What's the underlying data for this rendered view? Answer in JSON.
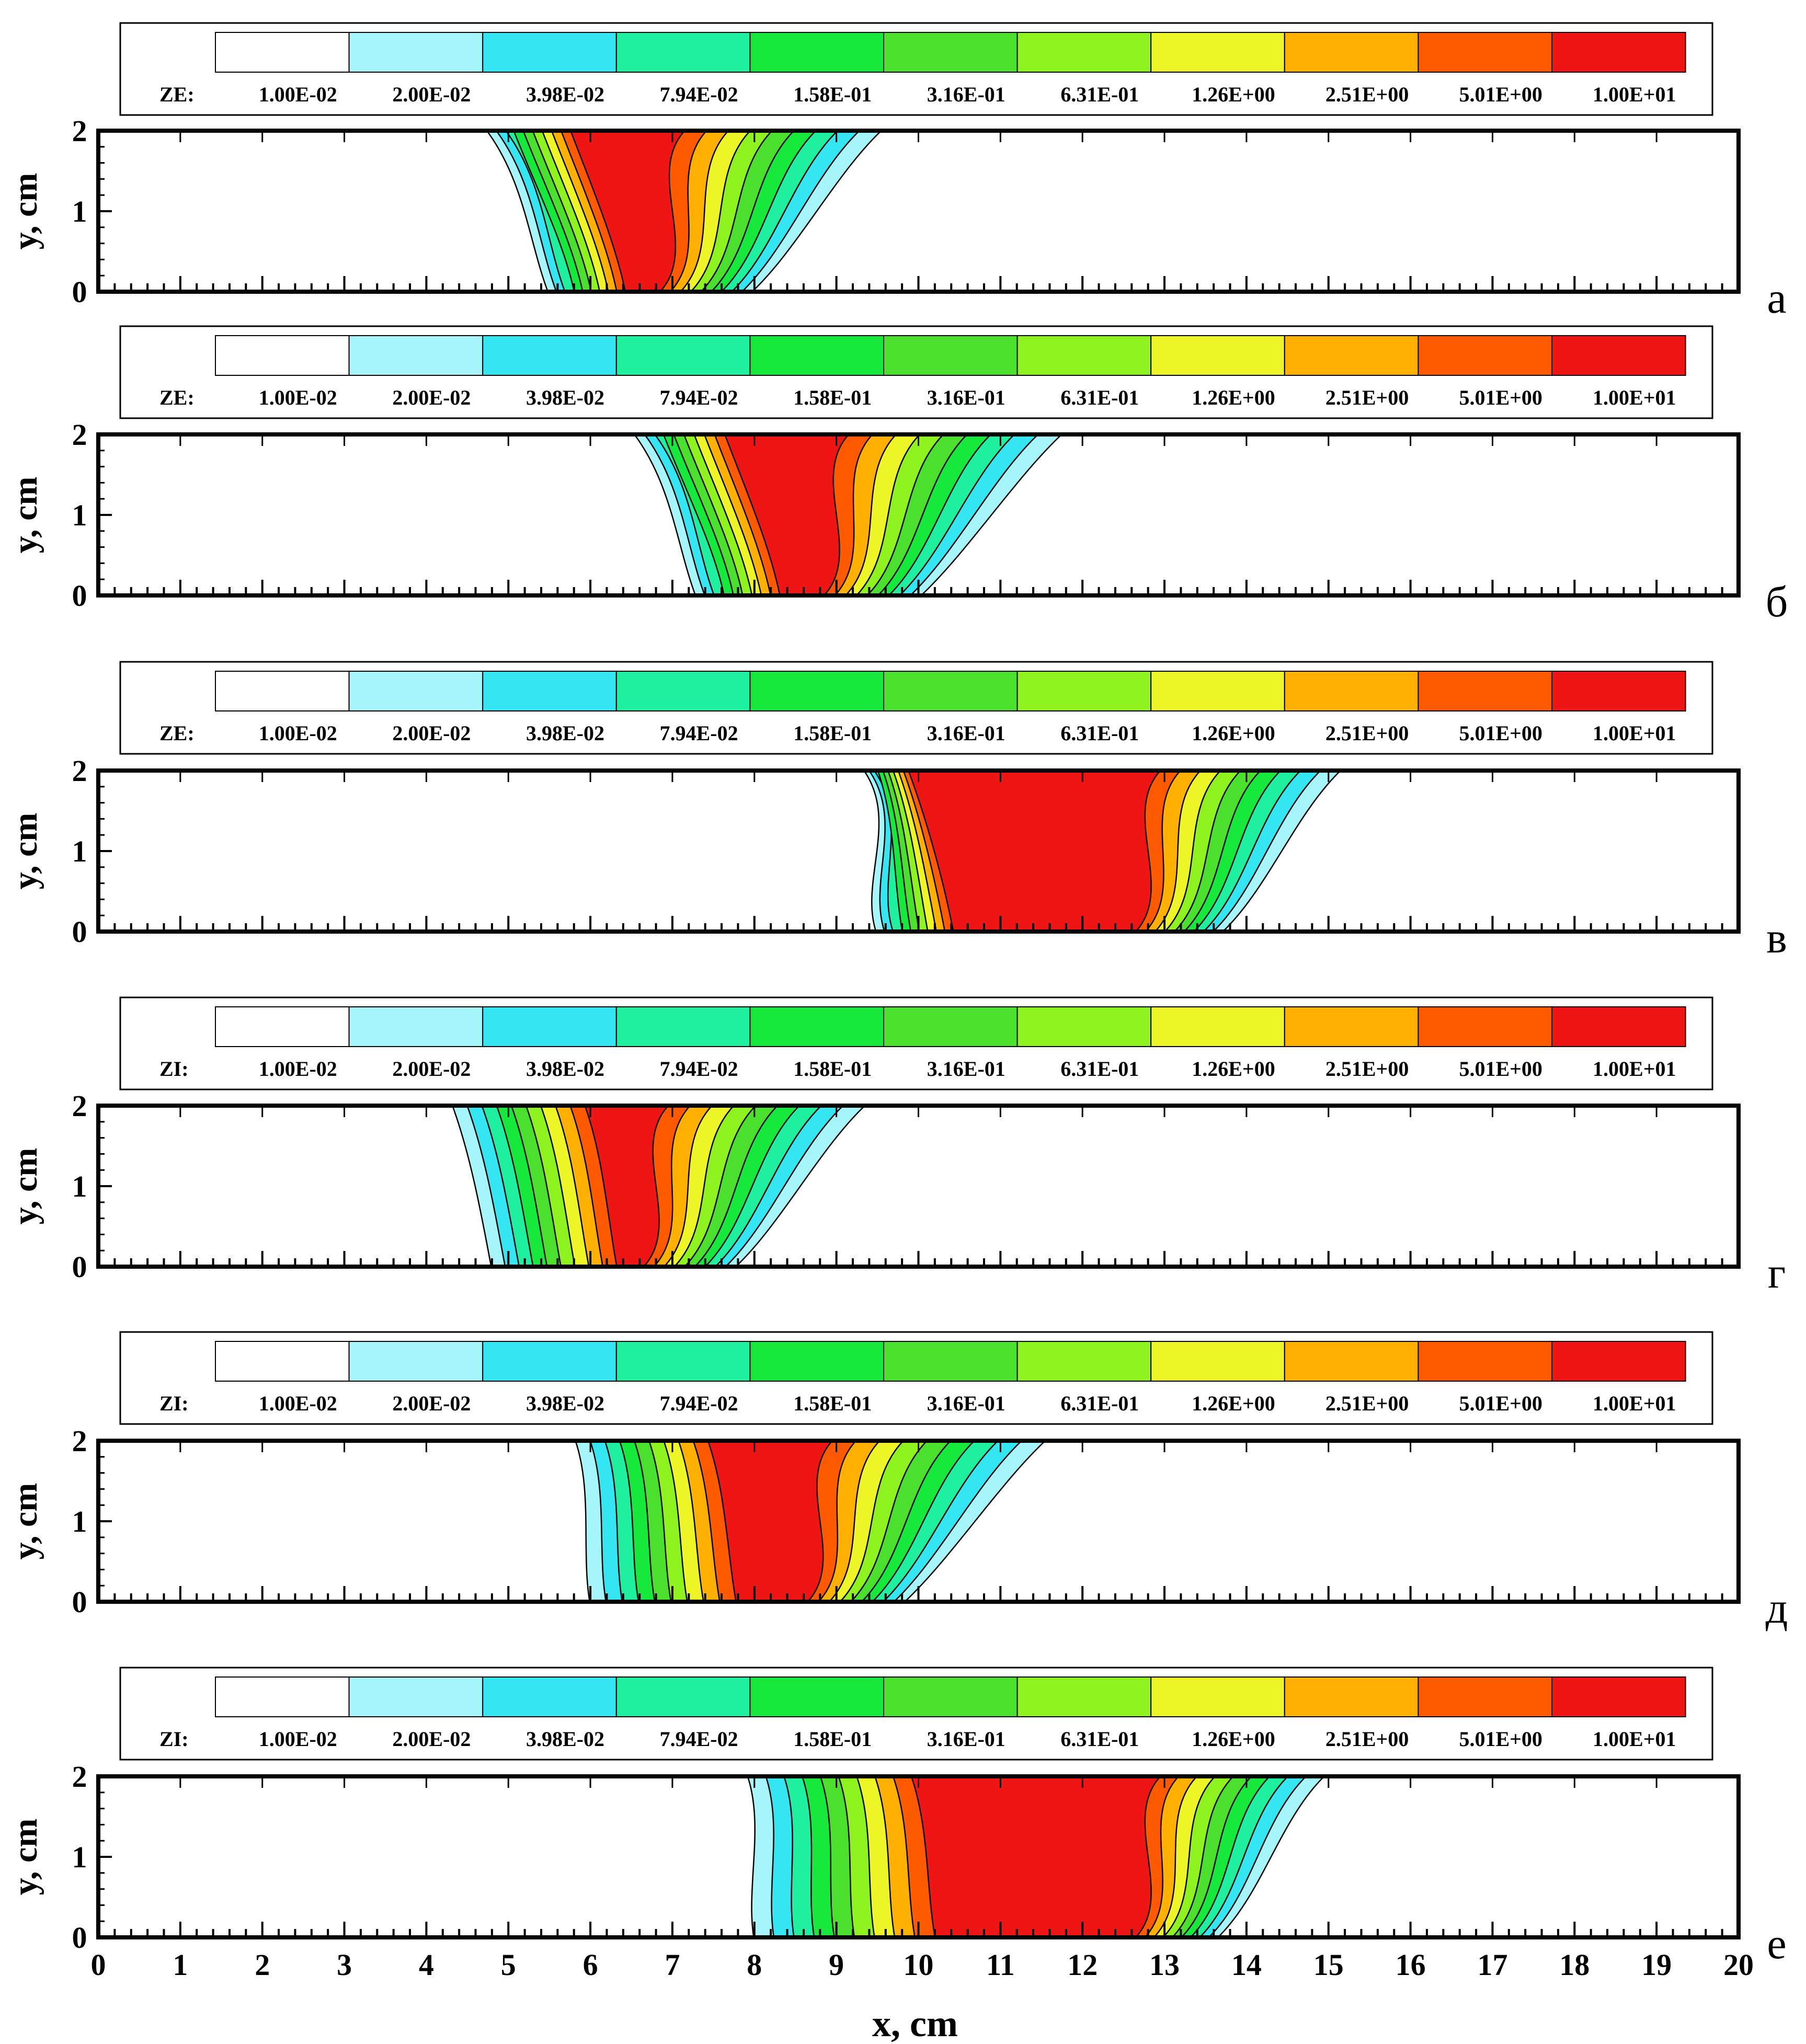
{
  "figure": {
    "ylabel": "y, cm",
    "xlabel": "x, cm",
    "x_ticks": [
      "0",
      "1",
      "2",
      "3",
      "4",
      "5",
      "6",
      "7",
      "8",
      "9",
      "10",
      "11",
      "12",
      "13",
      "14",
      "15",
      "16",
      "17",
      "18",
      "19",
      "20"
    ],
    "y_ticks": [
      "0",
      "1",
      "2"
    ]
  },
  "legend_colors": [
    "#ffffff",
    "#a6f5fb",
    "#33e6f2",
    "#1ff0a0",
    "#16e83c",
    "#4be02e",
    "#8ef21e",
    "#eef527",
    "#ffb000",
    "#ff5a00",
    "#f01515"
  ],
  "legend_levels": [
    "1.00E-02",
    "2.00E-02",
    "3.98E-02",
    "7.94E-02",
    "1.58E-01",
    "3.16E-01",
    "6.31E-01",
    "1.26E+00",
    "2.51E+00",
    "5.01E+00",
    "1.00E+01"
  ],
  "chart_data": [
    {
      "type": "heatmap",
      "panel": "а",
      "variable": "ZE:",
      "xlim": [
        0,
        20
      ],
      "ylim": [
        0,
        2
      ],
      "front_x": [
        4.7,
        5.5
      ],
      "region_x": [
        4.7,
        9.6
      ],
      "peak_x": [
        6.0,
        7.2
      ]
    },
    {
      "type": "heatmap",
      "panel": "б",
      "variable": "ZE:",
      "xlim": [
        0,
        20
      ],
      "ylim": [
        0,
        2
      ],
      "front_x": [
        6.5,
        7.3
      ],
      "region_x": [
        6.5,
        11.8
      ],
      "peak_x": [
        7.9,
        9.2
      ]
    },
    {
      "type": "heatmap",
      "panel": "в",
      "variable": "ZE:",
      "xlim": [
        0,
        20
      ],
      "ylim": [
        0,
        2
      ],
      "front_x": [
        9.3,
        9.5
      ],
      "region_x": [
        9.3,
        15.2
      ],
      "peak_x": [
        10.0,
        13.0
      ]
    },
    {
      "type": "heatmap",
      "panel": "г",
      "variable": "ZI:",
      "xlim": [
        0,
        20
      ],
      "ylim": [
        0,
        2
      ],
      "front_x": [
        4.3,
        4.8
      ],
      "region_x": [
        4.3,
        9.4
      ],
      "peak_x": [
        6.0,
        7.0
      ]
    },
    {
      "type": "heatmap",
      "panel": "д",
      "variable": "ZI:",
      "xlim": [
        0,
        20
      ],
      "ylim": [
        0,
        2
      ],
      "front_x": [
        5.8,
        6.0
      ],
      "region_x": [
        5.8,
        11.6
      ],
      "peak_x": [
        7.5,
        9.0
      ]
    },
    {
      "type": "heatmap",
      "panel": "е",
      "variable": "ZI:",
      "xlim": [
        0,
        20
      ],
      "ylim": [
        0,
        2
      ],
      "front_x": [
        7.9,
        8.0
      ],
      "region_x": [
        7.9,
        15.0
      ],
      "peak_x": [
        10.0,
        13.0
      ]
    }
  ]
}
